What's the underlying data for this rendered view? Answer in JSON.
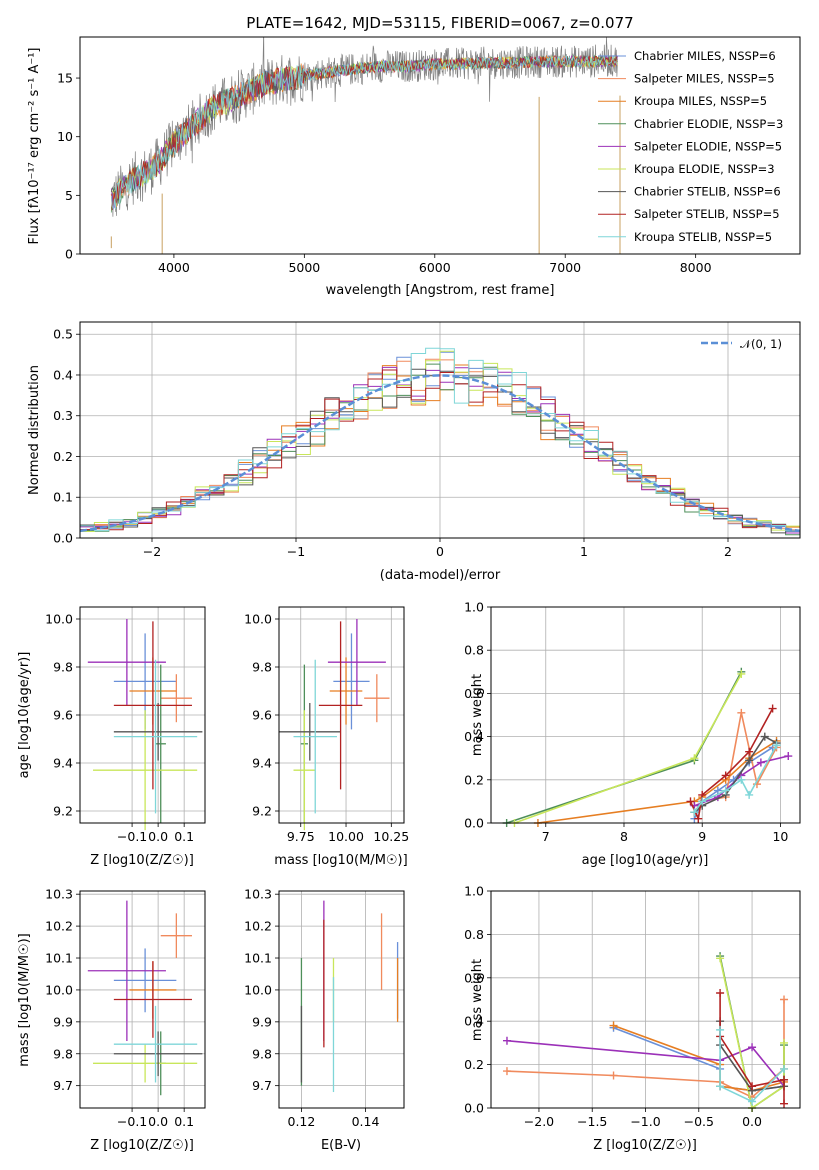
{
  "chart_data": [
    {
      "id": "spectrum",
      "type": "line",
      "title": "PLATE=1642, MJD=53115, FIBERID=0067, z=0.077",
      "xlabel": "wavelength [Angstrom, rest frame]",
      "ylabel": "Flux [fλ10⁻¹⁷ erg cm⁻² s⁻¹ A⁻¹]",
      "xlim": [
        3280,
        8800
      ],
      "ylim": [
        0,
        18.5
      ],
      "xticks": [
        4000,
        5000,
        6000,
        7000,
        8000
      ],
      "yticks": [
        0,
        5,
        10,
        15
      ],
      "grid": false,
      "legend_position": "right",
      "data_color": "#808080",
      "data_envelope": {
        "x": [
          3520,
          3600,
          3700,
          3800,
          3900,
          4000,
          4100,
          4200,
          4300,
          4400,
          4500,
          4600,
          4700,
          4800,
          4900,
          5000,
          5200,
          5400,
          5600,
          5800,
          6000,
          6200,
          6400,
          6600,
          6800,
          7000,
          7200,
          7400
        ],
        "y": [
          4.5,
          5.5,
          6.5,
          7,
          8,
          9.5,
          10.5,
          11.5,
          12.5,
          13,
          13.5,
          14,
          14.5,
          14.8,
          15,
          15.2,
          15.5,
          15.8,
          16,
          16,
          16.2,
          16.2,
          16.3,
          16.3,
          16.4,
          16.4,
          16.4,
          16.5
        ]
      },
      "series": [
        {
          "name": "Chabrier MILES, NSSP=6",
          "color": "#6a90d8"
        },
        {
          "name": "Salpeter MILES, NSSP=5",
          "color": "#f08a5d"
        },
        {
          "name": "Kroupa MILES, NSSP=5",
          "color": "#e67e22"
        },
        {
          "name": "Chabrier ELODIE, NSSP=3",
          "color": "#4e8f5a"
        },
        {
          "name": "Salpeter ELODIE, NSSP=5",
          "color": "#9b30b8"
        },
        {
          "name": "Kroupa ELODIE, NSSP=3",
          "color": "#c8e65a"
        },
        {
          "name": "Chabrier STELIB, NSSP=6",
          "color": "#555555"
        },
        {
          "name": "Salpeter STELIB, NSSP=5",
          "color": "#b22222"
        },
        {
          "name": "Kroupa STELIB, NSSP=5",
          "color": "#7fd6d8"
        }
      ]
    },
    {
      "id": "residuals",
      "type": "line",
      "xlabel": "(data-model)/error",
      "ylabel": "Normed distribution",
      "xlim": [
        -2.5,
        2.5
      ],
      "ylim": [
        0,
        0.53
      ],
      "xticks": [
        -2,
        -1,
        0,
        1,
        2
      ],
      "yticks": [
        0.0,
        0.1,
        0.2,
        0.3,
        0.4,
        0.5
      ],
      "grid": true,
      "legend_position": "top-right",
      "gaussian": {
        "name": "𝒩(0, 1)",
        "color": "#5b8fd6"
      }
    },
    {
      "id": "age-vs-z",
      "type": "scatter",
      "xlabel": "Z [log10(Z/Z☉)]",
      "ylabel": "age  [log10(age/yr)]",
      "xlim": [
        -0.3,
        0.18
      ],
      "ylim": [
        9.15,
        10.05
      ],
      "xticks": [
        -0.1,
        0.0,
        0.1
      ],
      "yticks": [
        9.2,
        9.4,
        9.6,
        9.8,
        10.0
      ],
      "grid": true,
      "points": [
        {
          "x": -0.05,
          "y": 9.74,
          "xerr": 0.12,
          "yerr": 0.2,
          "series": 0
        },
        {
          "x": 0.07,
          "y": 9.67,
          "xerr": 0.06,
          "yerr": 0.1,
          "series": 1
        },
        {
          "x": -0.02,
          "y": 9.7,
          "xerr": 0.09,
          "yerr": 0.14,
          "series": 2
        },
        {
          "x": 0.01,
          "y": 9.48,
          "xerr": 0.02,
          "yerr": 0.33,
          "series": 3
        },
        {
          "x": -0.12,
          "y": 9.82,
          "xerr": 0.15,
          "yerr": 0.18,
          "series": 4
        },
        {
          "x": -0.05,
          "y": 9.37,
          "xerr": 0.2,
          "yerr": 0.25,
          "series": 5
        },
        {
          "x": 0.0,
          "y": 9.53,
          "xerr": 0.17,
          "yerr": 0.12,
          "series": 6
        },
        {
          "x": -0.02,
          "y": 9.64,
          "xerr": 0.15,
          "yerr": 0.35,
          "series": 7
        },
        {
          "x": -0.01,
          "y": 9.51,
          "xerr": 0.16,
          "yerr": 0.32,
          "series": 8
        }
      ]
    },
    {
      "id": "age-vs-mass",
      "type": "scatter",
      "xlabel": "mass [log10(M/M☉)]",
      "ylabel": "",
      "xlim": [
        9.63,
        10.32
      ],
      "ylim": [
        9.15,
        10.05
      ],
      "xticks": [
        9.75,
        10.0,
        10.25
      ],
      "yticks": [
        9.2,
        9.4,
        9.6,
        9.8,
        10.0
      ],
      "grid": true,
      "points": [
        {
          "x": 10.03,
          "y": 9.74,
          "xerr": 0.1,
          "yerr": 0.2,
          "series": 0
        },
        {
          "x": 10.17,
          "y": 9.67,
          "xerr": 0.07,
          "yerr": 0.1,
          "series": 1
        },
        {
          "x": 10.0,
          "y": 9.7,
          "xerr": 0.09,
          "yerr": 0.14,
          "series": 2
        },
        {
          "x": 9.77,
          "y": 9.48,
          "xerr": 0.02,
          "yerr": 0.33,
          "series": 3
        },
        {
          "x": 10.06,
          "y": 9.82,
          "xerr": 0.16,
          "yerr": 0.18,
          "series": 4
        },
        {
          "x": 9.77,
          "y": 9.37,
          "xerr": 0.06,
          "yerr": 0.25,
          "series": 5
        },
        {
          "x": 9.8,
          "y": 9.53,
          "xerr": 0.17,
          "yerr": 0.12,
          "series": 6
        },
        {
          "x": 9.97,
          "y": 9.64,
          "xerr": 0.12,
          "yerr": 0.35,
          "series": 7
        },
        {
          "x": 9.83,
          "y": 9.51,
          "xerr": 0.12,
          "yerr": 0.32,
          "series": 8
        }
      ]
    },
    {
      "id": "mass-weight-vs-age",
      "type": "line",
      "xlabel": "age  [log10(age/yr)]",
      "ylabel": "mass weight",
      "xlim": [
        6.3,
        10.25
      ],
      "ylim": [
        0,
        1.0
      ],
      "xticks": [
        7,
        8,
        9,
        10
      ],
      "yticks": [
        0.0,
        0.2,
        0.4,
        0.6,
        0.8,
        1.0
      ],
      "grid": true,
      "series": [
        {
          "series": 0,
          "x": [
            8.9,
            9.0,
            9.2,
            9.4,
            9.6,
            9.9
          ],
          "y": [
            0.02,
            0.1,
            0.15,
            0.2,
            0.28,
            0.35
          ]
        },
        {
          "series": 1,
          "x": [
            8.9,
            9.0,
            9.3,
            9.5,
            9.7,
            9.95
          ],
          "y": [
            0.05,
            0.1,
            0.12,
            0.51,
            0.18,
            0.35
          ]
        },
        {
          "series": 2,
          "x": [
            6.9,
            8.9,
            9.0,
            9.3,
            9.6,
            9.95
          ],
          "y": [
            0.0,
            0.1,
            0.12,
            0.2,
            0.3,
            0.38
          ]
        },
        {
          "series": 3,
          "x": [
            6.5,
            8.9,
            9.5
          ],
          "y": [
            0.0,
            0.29,
            0.7
          ]
        },
        {
          "series": 4,
          "x": [
            8.9,
            9.2,
            9.5,
            9.75,
            10.1
          ],
          "y": [
            0.08,
            0.12,
            0.22,
            0.28,
            0.31
          ]
        },
        {
          "series": 5,
          "x": [
            6.6,
            8.9,
            9.5
          ],
          "y": [
            0.0,
            0.3,
            0.69
          ]
        },
        {
          "series": 6,
          "x": [
            8.9,
            9.0,
            9.3,
            9.6,
            9.8,
            9.95
          ],
          "y": [
            0.05,
            0.08,
            0.13,
            0.29,
            0.4,
            0.37
          ]
        },
        {
          "series": 7,
          "x": [
            8.85,
            8.95,
            9.0,
            9.3,
            9.6,
            9.9
          ],
          "y": [
            0.1,
            0.02,
            0.13,
            0.22,
            0.33,
            0.53
          ]
        },
        {
          "series": 8,
          "x": [
            8.9,
            9.0,
            9.3,
            9.5,
            9.6,
            9.95
          ],
          "y": [
            0.05,
            0.1,
            0.15,
            0.2,
            0.13,
            0.36
          ]
        }
      ]
    },
    {
      "id": "mass-vs-z",
      "type": "scatter",
      "xlabel": "Z [log10(Z/Z☉)]",
      "ylabel": "mass [log10(M/M☉)]",
      "xlim": [
        -0.3,
        0.18
      ],
      "ylim": [
        9.63,
        10.31
      ],
      "xticks": [
        -0.1,
        0.0,
        0.1
      ],
      "yticks": [
        9.7,
        9.8,
        9.9,
        10.0,
        10.1,
        10.2,
        10.3
      ],
      "grid": true,
      "points": [
        {
          "x": -0.05,
          "y": 10.03,
          "xerr": 0.12,
          "yerr": 0.1,
          "series": 0
        },
        {
          "x": 0.07,
          "y": 10.17,
          "xerr": 0.06,
          "yerr": 0.07,
          "series": 1
        },
        {
          "x": -0.02,
          "y": 10.0,
          "xerr": 0.09,
          "yerr": 0.09,
          "series": 2
        },
        {
          "x": 0.01,
          "y": 9.77,
          "xerr": 0.02,
          "yerr": 0.1,
          "series": 3
        },
        {
          "x": -0.12,
          "y": 10.06,
          "xerr": 0.15,
          "yerr": 0.22,
          "series": 4
        },
        {
          "x": -0.05,
          "y": 9.77,
          "xerr": 0.2,
          "yerr": 0.06,
          "series": 5
        },
        {
          "x": 0.0,
          "y": 9.8,
          "xerr": 0.17,
          "yerr": 0.07,
          "series": 6
        },
        {
          "x": -0.02,
          "y": 9.97,
          "xerr": 0.15,
          "yerr": 0.12,
          "series": 7
        },
        {
          "x": -0.01,
          "y": 9.83,
          "xerr": 0.16,
          "yerr": 0.12,
          "series": 8
        }
      ]
    },
    {
      "id": "mass-vs-ebv",
      "type": "scatter",
      "xlabel": "E(B-V)",
      "ylabel": "",
      "xlim": [
        0.113,
        0.152
      ],
      "ylim": [
        9.63,
        10.31
      ],
      "xticks": [
        0.12,
        0.14
      ],
      "yticks": [
        9.7,
        9.8,
        9.9,
        10.0,
        10.1,
        10.2,
        10.3
      ],
      "grid": true,
      "points": [
        {
          "x": 0.15,
          "y": 10.03,
          "xerr": 0,
          "yerr": 0.12,
          "series": 0
        },
        {
          "x": 0.145,
          "y": 10.12,
          "xerr": 0,
          "yerr": 0.12,
          "series": 1
        },
        {
          "x": 0.15,
          "y": 10.0,
          "xerr": 0,
          "yerr": 0.1,
          "series": 2
        },
        {
          "x": 0.12,
          "y": 9.9,
          "xerr": 0,
          "yerr": 0.2,
          "series": 3
        },
        {
          "x": 0.127,
          "y": 10.06,
          "xerr": 0,
          "yerr": 0.22,
          "series": 4
        },
        {
          "x": 0.13,
          "y": 10.0,
          "xerr": 0,
          "yerr": 0.1,
          "series": 5
        },
        {
          "x": 0.12,
          "y": 9.83,
          "xerr": 0,
          "yerr": 0.12,
          "series": 6
        },
        {
          "x": 0.127,
          "y": 10.02,
          "xerr": 0,
          "yerr": 0.2,
          "series": 7
        },
        {
          "x": 0.13,
          "y": 9.86,
          "xerr": 0,
          "yerr": 0.18,
          "series": 8
        }
      ]
    },
    {
      "id": "mass-weight-vs-z",
      "type": "line",
      "xlabel": "Z [log10(Z/Z☉)]",
      "ylabel": "mass weight",
      "xlim": [
        -2.45,
        0.45
      ],
      "ylim": [
        0,
        1.0
      ],
      "xticks": [
        -2.0,
        -1.5,
        -1.0,
        -0.5,
        0.0
      ],
      "yticks": [
        0.0,
        0.2,
        0.4,
        0.6,
        0.8,
        1.0
      ],
      "grid": true,
      "series": [
        {
          "series": 0,
          "x": [
            -1.3,
            -0.3,
            -0.3,
            0.0,
            0.3
          ],
          "y": [
            0.37,
            0.18,
            0.1,
            0.08,
            0.1
          ]
        },
        {
          "series": 1,
          "x": [
            -2.3,
            -1.3,
            -0.3,
            0.0,
            0.3,
            0.3
          ],
          "y": [
            0.17,
            0.15,
            0.12,
            0.05,
            0.18,
            0.5
          ]
        },
        {
          "series": 2,
          "x": [
            -1.3,
            -0.3,
            -0.3,
            0.0,
            0.3
          ],
          "y": [
            0.38,
            0.2,
            0.1,
            0.08,
            0.12
          ]
        },
        {
          "series": 3,
          "x": [
            -0.3,
            0.0,
            0.3,
            0.3
          ],
          "y": [
            0.7,
            0.0,
            0.1,
            0.29
          ]
        },
        {
          "series": 4,
          "x": [
            -2.3,
            -0.3,
            0.0,
            0.3
          ],
          "y": [
            0.31,
            0.22,
            0.28,
            0.1
          ]
        },
        {
          "series": 5,
          "x": [
            -0.3,
            0.0,
            0.3,
            0.3
          ],
          "y": [
            0.69,
            0.0,
            0.1,
            0.3
          ]
        },
        {
          "series": 6,
          "x": [
            -0.3,
            -0.3,
            0.0,
            0.3,
            0.3
          ],
          "y": [
            0.4,
            0.29,
            0.08,
            0.1,
            0.13
          ]
        },
        {
          "series": 7,
          "x": [
            -0.3,
            -0.3,
            0.0,
            0.3,
            0.3
          ],
          "y": [
            0.53,
            0.33,
            0.1,
            0.13,
            0.02
          ]
        },
        {
          "series": 8,
          "x": [
            -0.3,
            -0.3,
            0.0,
            0.3
          ],
          "y": [
            0.36,
            0.1,
            0.03,
            0.18
          ]
        }
      ]
    }
  ]
}
